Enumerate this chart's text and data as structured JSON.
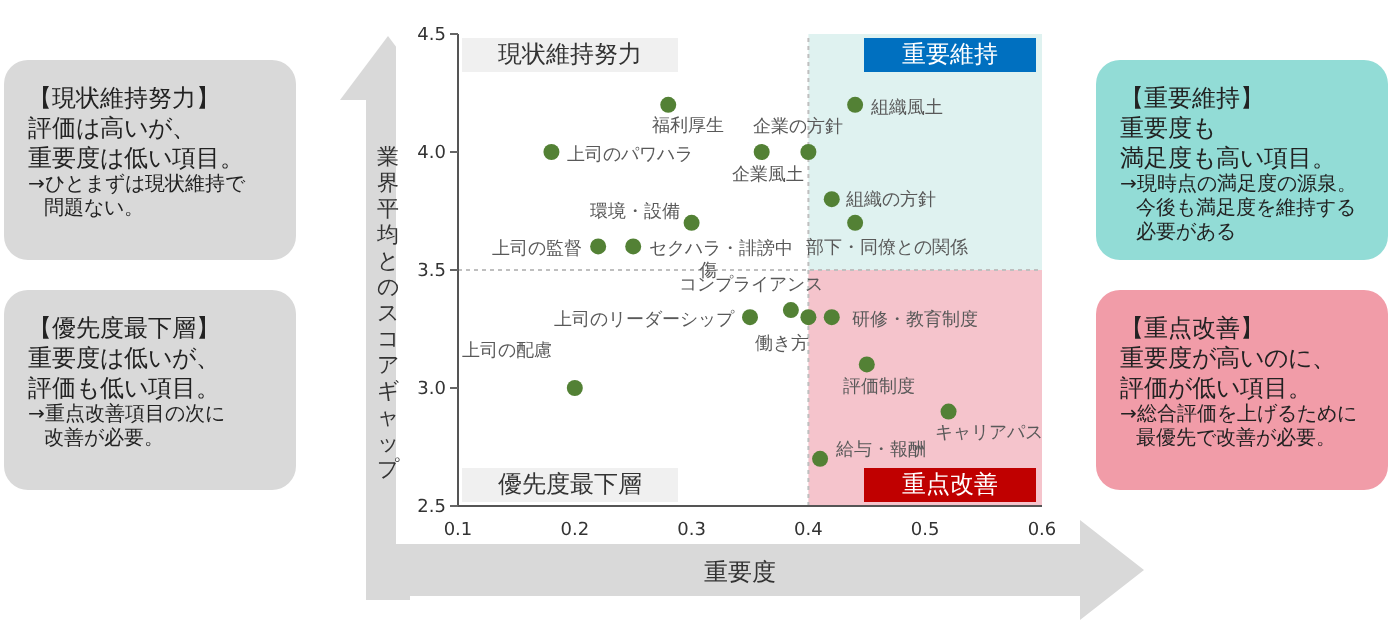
{
  "chart_data": [
    {
      "type": "other",
      "title": "【現状維持努力】",
      "color": "#d9d9d9",
      "annotations": [
        "評価は高いが、",
        "重要度は低い項目。",
        "→ひとまずは現状維持で",
        "問題ない。"
      ]
    },
    {
      "type": "other",
      "title": "【優先度最下層】",
      "color": "#d9d9d9",
      "annotations": [
        "重要度は低いが、",
        "評価も低い項目。",
        "→重点改善項目の次に",
        "改善が必要。"
      ]
    },
    {
      "type": "scatter",
      "xlabel": "重要度",
      "ylabel": "業界平均とのスコアギャップ",
      "marker": "circle",
      "xlim": [
        0.1,
        0.6
      ],
      "xticks": [
        0.1,
        0.2,
        0.3,
        0.4,
        0.5,
        0.6
      ],
      "ylim": [
        2.5,
        4.5
      ],
      "yticks": [
        2.5,
        {
          "value": 3,
          "label": "3.0"
        },
        3.5,
        {
          "value": 4,
          "label": "4.0"
        },
        4.5
      ],
      "ref_lines": [
        {
          "axis": "x",
          "value": 0.4,
          "line_style": "dotted",
          "color": "#bfbfbf"
        },
        {
          "axis": "y",
          "value": 3.5,
          "line_style": "dotted",
          "color": "#bfbfbf"
        }
      ],
      "bands": [
        {
          "axis": "y",
          "from": 3.5,
          "to": 4.5,
          "label": "重要維持",
          "color": "#dff2f0"
        },
        {
          "axis": "y",
          "from": 2.5,
          "to": 3.5,
          "label": "重点改善",
          "color": "#f5c4cc"
        }
      ],
      "annotations": [
        "現状維持努力",
        "優先度最下層"
      ],
      "series": [
        {
          "name": "福利厚生",
          "color": "#538135",
          "x": [
            0.28
          ],
          "values": [
            4.2
          ]
        },
        {
          "name": "上司のパワハラ",
          "color": "#538135",
          "x": [
            0.18
          ],
          "values": [
            4.0
          ]
        },
        {
          "name": "企業風土",
          "color": "#538135",
          "x": [
            0.36
          ],
          "values": [
            4.0
          ]
        },
        {
          "name": "企業の方針",
          "color": "#538135",
          "x": [
            0.4
          ],
          "values": [
            4.0
          ]
        },
        {
          "name": "組織風土",
          "color": "#538135",
          "x": [
            0.44
          ],
          "values": [
            4.2
          ]
        },
        {
          "name": "組織の方針",
          "color": "#538135",
          "x": [
            0.42
          ],
          "values": [
            3.8
          ]
        },
        {
          "name": "部下・同僚との関係",
          "color": "#538135",
          "x": [
            0.44
          ],
          "values": [
            3.7
          ]
        },
        {
          "name": "環境・設備",
          "color": "#538135",
          "x": [
            0.3
          ],
          "values": [
            3.7
          ]
        },
        {
          "name": "セクハラ・誹謗中傷",
          "color": "#538135",
          "x": [
            0.25
          ],
          "values": [
            3.6
          ]
        },
        {
          "name": "上司の監督",
          "color": "#538135",
          "x": [
            0.22
          ],
          "values": [
            3.6
          ]
        },
        {
          "name": "コンプライアンス",
          "color": "#538135",
          "x": [
            0.385
          ],
          "values": [
            3.33
          ]
        },
        {
          "name": "上司のリーダーシップ",
          "color": "#538135",
          "x": [
            0.35
          ],
          "values": [
            3.3
          ]
        },
        {
          "name": "働き方",
          "color": "#538135",
          "x": [
            0.4
          ],
          "values": [
            3.3
          ]
        },
        {
          "name": "研修・教育制度",
          "color": "#538135",
          "x": [
            0.42
          ],
          "values": [
            3.3
          ]
        },
        {
          "name": "評価制度",
          "color": "#538135",
          "x": [
            0.45
          ],
          "values": [
            3.1
          ]
        },
        {
          "name": "キャリアパス",
          "color": "#538135",
          "x": [
            0.52
          ],
          "values": [
            2.9
          ]
        },
        {
          "name": "給与・報酬",
          "color": "#538135",
          "x": [
            0.41
          ],
          "values": [
            2.7
          ]
        },
        {
          "name": "上司の配慮",
          "color": "#538135",
          "x": [
            0.2
          ],
          "values": [
            3.0
          ]
        }
      ]
    },
    {
      "type": "other",
      "title": "【重要維持】",
      "color": "#92dcd6",
      "annotations": [
        "重要度も",
        "満足度も高い項目。",
        "→現時点の満足度の源泉。",
        "今後も満足度を維持する",
        "必要がある"
      ]
    },
    {
      "type": "other",
      "title": "【重点改善】",
      "color": "#f19ca8",
      "annotations": [
        "重要度が高いのに、",
        "評価が低い項目。",
        "→総合評価を上げるために",
        "最優先で改善が必要。"
      ]
    }
  ]
}
